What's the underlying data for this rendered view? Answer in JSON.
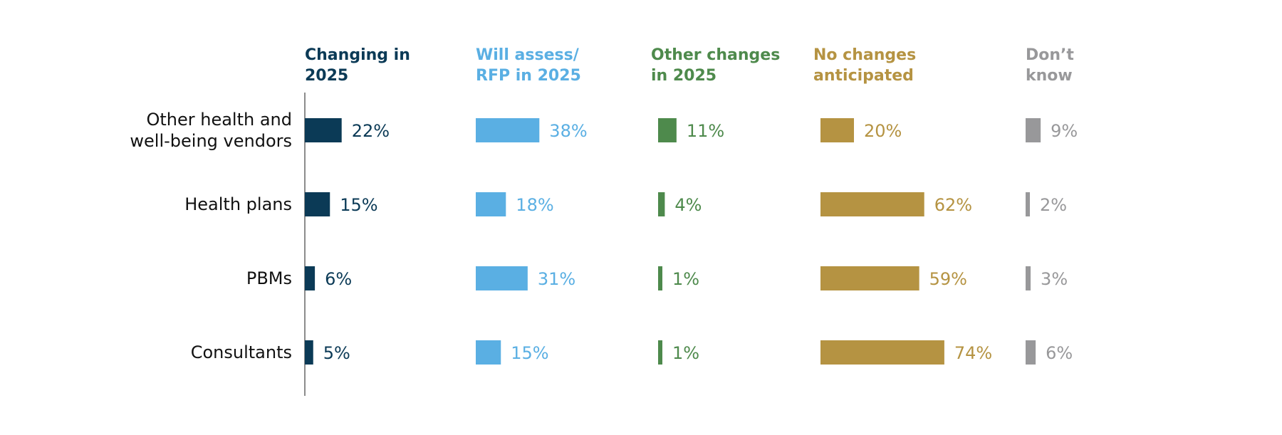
{
  "chart_data": {
    "type": "bar",
    "categories": [
      [
        "Other health and",
        "well-being vendors"
      ],
      [
        "Health plans"
      ],
      [
        "PBMs"
      ],
      [
        "Consultants"
      ]
    ],
    "series": [
      {
        "name": [
          "Changing in",
          "2025"
        ],
        "color": "#0b3a56",
        "values": [
          22,
          15,
          6,
          5
        ]
      },
      {
        "name": [
          "Will assess/",
          "RFP in 2025"
        ],
        "color": "#5aafe3",
        "values": [
          38,
          18,
          31,
          15
        ]
      },
      {
        "name": [
          "Other changes",
          "in 2025"
        ],
        "color": "#4e8a4c",
        "values": [
          11,
          4,
          1,
          1
        ]
      },
      {
        "name": [
          "No changes",
          "anticipated"
        ],
        "color": "#b59342",
        "values": [
          20,
          62,
          59,
          74
        ]
      },
      {
        "name": [
          "Don’t",
          "know"
        ],
        "color": "#98989a",
        "values": [
          9,
          2,
          3,
          6
        ]
      }
    ],
    "value_suffix": "%",
    "legend": "column headers above each panel",
    "axis_line": true,
    "grid": false
  }
}
